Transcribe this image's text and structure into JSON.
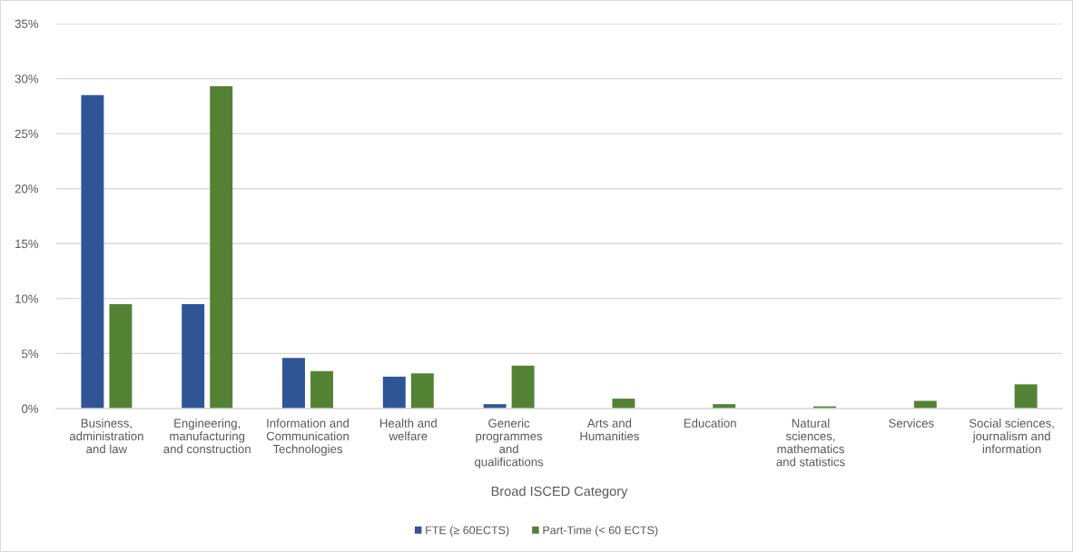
{
  "chart_data": {
    "type": "bar",
    "categories": [
      "Business,\nadministration\nand law",
      "Engineering,\nmanufacturing\nand construction",
      "Information and\nCommunication\nTechnologies",
      "Health and\nwelfare",
      "Generic\nprogrammes\nand\nqualifications",
      "Arts and\nHumanities",
      "Education",
      "Natural\nsciences,\nmathematics\nand statistics",
      "Services",
      "Social sciences,\njournalism and\ninformation"
    ],
    "series": [
      {
        "name": "FTE (≥ 60ECTS)",
        "color": "#2f5597",
        "values": [
          28.5,
          9.5,
          4.6,
          2.9,
          0.4,
          0,
          0,
          0,
          0,
          0
        ]
      },
      {
        "name": "Part-Time (< 60 ECTS)",
        "color": "#548235",
        "values": [
          9.5,
          29.3,
          3.4,
          3.2,
          3.9,
          0.9,
          0.4,
          0.2,
          0.7,
          2.2
        ]
      }
    ],
    "xlabel": "Broad ISCED Category",
    "ylim": [
      0,
      35
    ],
    "yticks": [
      {
        "value": 0,
        "label": "0%"
      },
      {
        "value": 5,
        "label": "5%"
      },
      {
        "value": 10,
        "label": "10%"
      },
      {
        "value": 15,
        "label": "15%"
      },
      {
        "value": 20,
        "label": "20%"
      },
      {
        "value": 25,
        "label": "25%"
      },
      {
        "value": 30,
        "label": "30%"
      },
      {
        "value": 35,
        "label": "35%"
      }
    ],
    "grid": "y",
    "legend": "bottom"
  }
}
